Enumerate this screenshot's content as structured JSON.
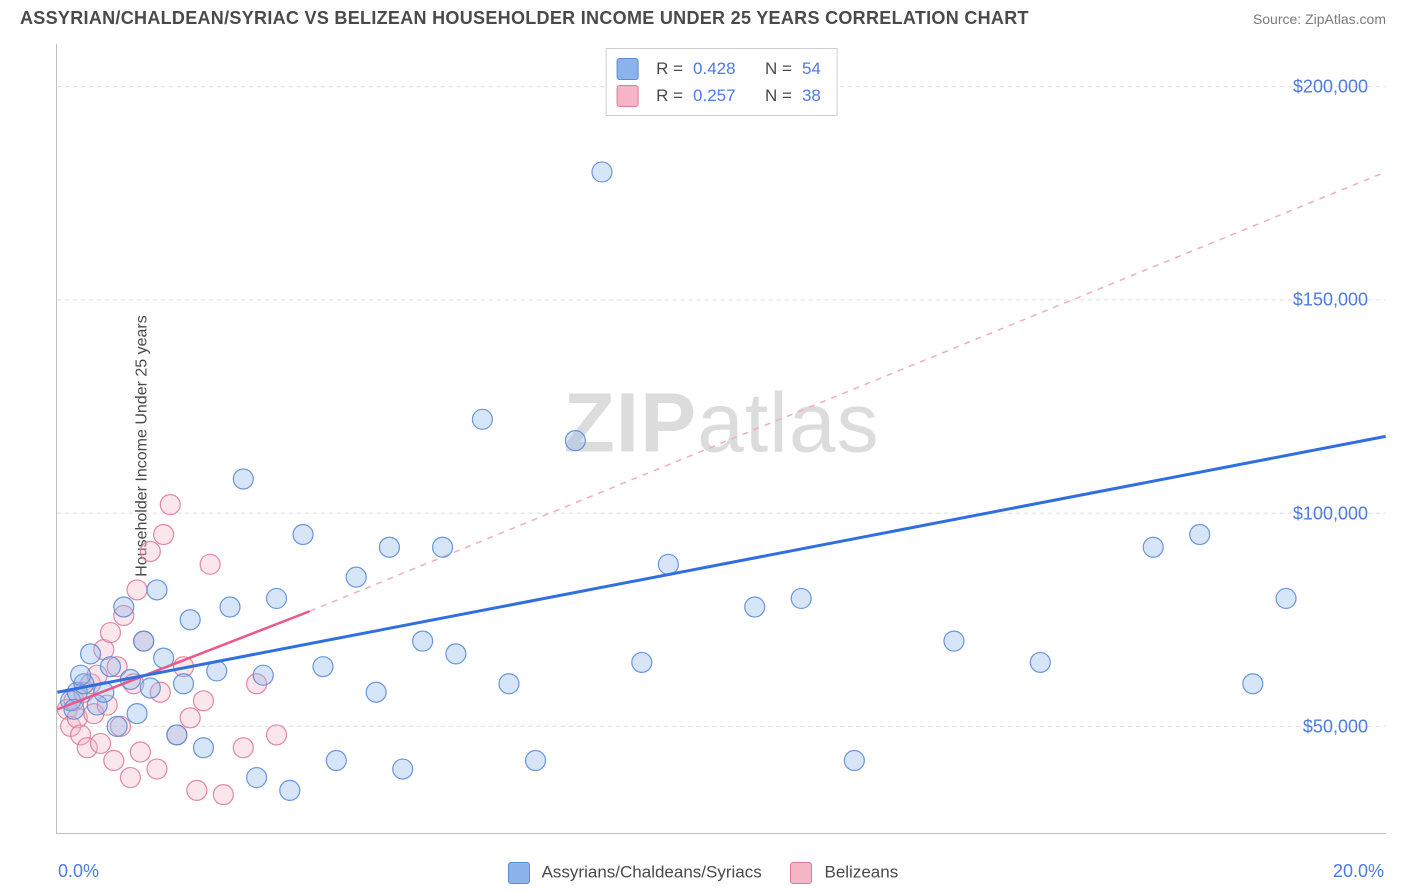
{
  "title": "ASSYRIAN/CHALDEAN/SYRIAC VS BELIZEAN HOUSEHOLDER INCOME UNDER 25 YEARS CORRELATION CHART",
  "source": "Source: ZipAtlas.com",
  "ylabel": "Householder Income Under 25 years",
  "watermark_bold": "ZIP",
  "watermark_light": "atlas",
  "chart": {
    "type": "scatter",
    "xlim": [
      0,
      20
    ],
    "ylim": [
      25000,
      210000
    ],
    "ygrid": [
      50000,
      100000,
      150000,
      200000
    ],
    "ytick_labels": [
      "$50,000",
      "$100,000",
      "$150,000",
      "$200,000"
    ],
    "xtick_min": "0.0%",
    "xtick_max": "20.0%",
    "background_color": "#ffffff",
    "grid_color": "#dcdcdc",
    "axis_color": "#bfbfbf",
    "text_color": "#4a4a4a",
    "tick_color": "#4b7be5",
    "marker_radius": 10,
    "marker_fill_opacity": 0.35,
    "marker_stroke_opacity": 0.9,
    "series": [
      {
        "key": "assyrians",
        "label": "Assyrians/Chaldeans/Syriacs",
        "color_fill": "#8cb4ea",
        "color_stroke": "#5a8bd9",
        "r_value": "0.428",
        "n_value": "54",
        "points": [
          [
            0.2,
            56000
          ],
          [
            0.3,
            58000
          ],
          [
            0.25,
            54000
          ],
          [
            0.4,
            60000
          ],
          [
            0.35,
            62000
          ],
          [
            0.5,
            67000
          ],
          [
            0.6,
            55000
          ],
          [
            0.7,
            58000
          ],
          [
            0.8,
            64000
          ],
          [
            0.9,
            50000
          ],
          [
            1.0,
            78000
          ],
          [
            1.1,
            61000
          ],
          [
            1.2,
            53000
          ],
          [
            1.3,
            70000
          ],
          [
            1.4,
            59000
          ],
          [
            1.5,
            82000
          ],
          [
            1.6,
            66000
          ],
          [
            1.8,
            48000
          ],
          [
            1.9,
            60000
          ],
          [
            2.0,
            75000
          ],
          [
            2.2,
            45000
          ],
          [
            2.4,
            63000
          ],
          [
            2.6,
            78000
          ],
          [
            2.8,
            108000
          ],
          [
            3.0,
            38000
          ],
          [
            3.1,
            62000
          ],
          [
            3.3,
            80000
          ],
          [
            3.5,
            35000
          ],
          [
            3.7,
            95000
          ],
          [
            4.0,
            64000
          ],
          [
            4.2,
            42000
          ],
          [
            4.5,
            85000
          ],
          [
            4.8,
            58000
          ],
          [
            5.0,
            92000
          ],
          [
            5.2,
            40000
          ],
          [
            5.5,
            70000
          ],
          [
            5.8,
            92000
          ],
          [
            6.0,
            67000
          ],
          [
            6.4,
            122000
          ],
          [
            6.8,
            60000
          ],
          [
            7.2,
            42000
          ],
          [
            7.8,
            117000
          ],
          [
            8.2,
            180000
          ],
          [
            8.8,
            65000
          ],
          [
            9.2,
            88000
          ],
          [
            10.5,
            78000
          ],
          [
            11.2,
            80000
          ],
          [
            12.0,
            42000
          ],
          [
            13.5,
            70000
          ],
          [
            14.8,
            65000
          ],
          [
            16.5,
            92000
          ],
          [
            17.2,
            95000
          ],
          [
            18.0,
            60000
          ],
          [
            18.5,
            80000
          ]
        ],
        "trend": {
          "type": "line",
          "x1": 0,
          "y1": 58000,
          "x2": 20,
          "y2": 118000,
          "stroke": "#2f6fe0",
          "width": 3,
          "dash": "none"
        }
      },
      {
        "key": "belizeans",
        "label": "Belizeans",
        "color_fill": "#f4b6c7",
        "color_stroke": "#e07a98",
        "r_value": "0.257",
        "n_value": "38",
        "points": [
          [
            0.15,
            54000
          ],
          [
            0.2,
            50000
          ],
          [
            0.25,
            56000
          ],
          [
            0.3,
            52000
          ],
          [
            0.35,
            48000
          ],
          [
            0.4,
            58000
          ],
          [
            0.45,
            45000
          ],
          [
            0.5,
            60000
          ],
          [
            0.55,
            53000
          ],
          [
            0.6,
            62000
          ],
          [
            0.65,
            46000
          ],
          [
            0.7,
            68000
          ],
          [
            0.75,
            55000
          ],
          [
            0.8,
            72000
          ],
          [
            0.85,
            42000
          ],
          [
            0.9,
            64000
          ],
          [
            0.95,
            50000
          ],
          [
            1.0,
            76000
          ],
          [
            1.1,
            38000
          ],
          [
            1.15,
            60000
          ],
          [
            1.2,
            82000
          ],
          [
            1.25,
            44000
          ],
          [
            1.3,
            70000
          ],
          [
            1.4,
            91000
          ],
          [
            1.5,
            40000
          ],
          [
            1.55,
            58000
          ],
          [
            1.6,
            95000
          ],
          [
            1.7,
            102000
          ],
          [
            1.8,
            48000
          ],
          [
            1.9,
            64000
          ],
          [
            2.0,
            52000
          ],
          [
            2.1,
            35000
          ],
          [
            2.2,
            56000
          ],
          [
            2.3,
            88000
          ],
          [
            2.5,
            34000
          ],
          [
            2.8,
            45000
          ],
          [
            3.0,
            60000
          ],
          [
            3.3,
            48000
          ]
        ],
        "trend_solid": {
          "type": "line",
          "x1": 0,
          "y1": 54000,
          "x2": 3.8,
          "y2": 77000,
          "stroke": "#e85a88",
          "width": 2.5,
          "dash": "none"
        },
        "trend_dashed": {
          "type": "line",
          "x1": 3.8,
          "y1": 77000,
          "x2": 20,
          "y2": 180000,
          "stroke": "#f0aebf",
          "width": 1.5,
          "dash": "6,6"
        }
      }
    ]
  },
  "legend_r_label": "R =",
  "legend_n_label": "N ="
}
